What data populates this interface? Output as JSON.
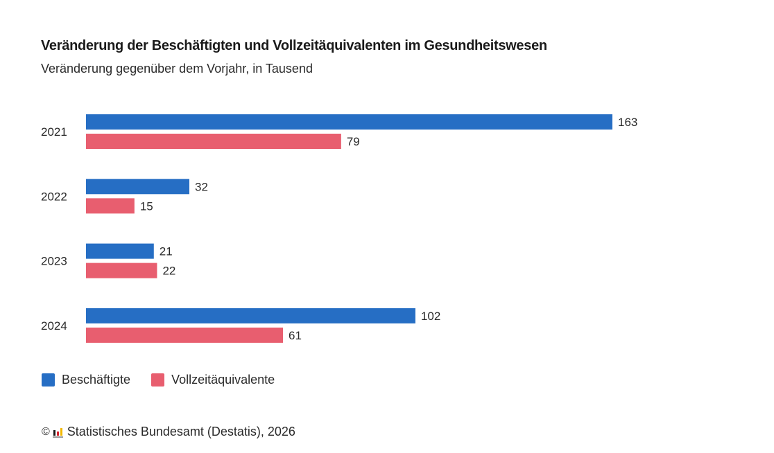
{
  "chart_data": {
    "type": "bar",
    "orientation": "horizontal",
    "title": "Veränderung der Beschäftigten und Vollzeitäquivalenten im Gesundheitswesen",
    "subtitle": "Veränderung gegenüber dem Vorjahr, in Tausend",
    "categories": [
      "2021",
      "2022",
      "2023",
      "2024"
    ],
    "series": [
      {
        "name": "Beschäftigte",
        "color": "#266ec4",
        "values": [
          163,
          32,
          21,
          102
        ]
      },
      {
        "name": "Vollzeitäquivalente",
        "color": "#e85e6f",
        "values": [
          79,
          15,
          22,
          61
        ]
      }
    ],
    "xlim": [
      0,
      163
    ],
    "grid": false,
    "data_labels": true,
    "legend": "bottom-left",
    "xlabel": "",
    "ylabel": ""
  },
  "legend": {
    "items": [
      {
        "label": "Beschäftigte",
        "color": "#266ec4"
      },
      {
        "label": "Vollzeitäquivalente",
        "color": "#e85e6f"
      }
    ]
  },
  "footer": {
    "copyright_symbol": "©",
    "source": "Statistisches Bundesamt (Destatis), 2026"
  }
}
